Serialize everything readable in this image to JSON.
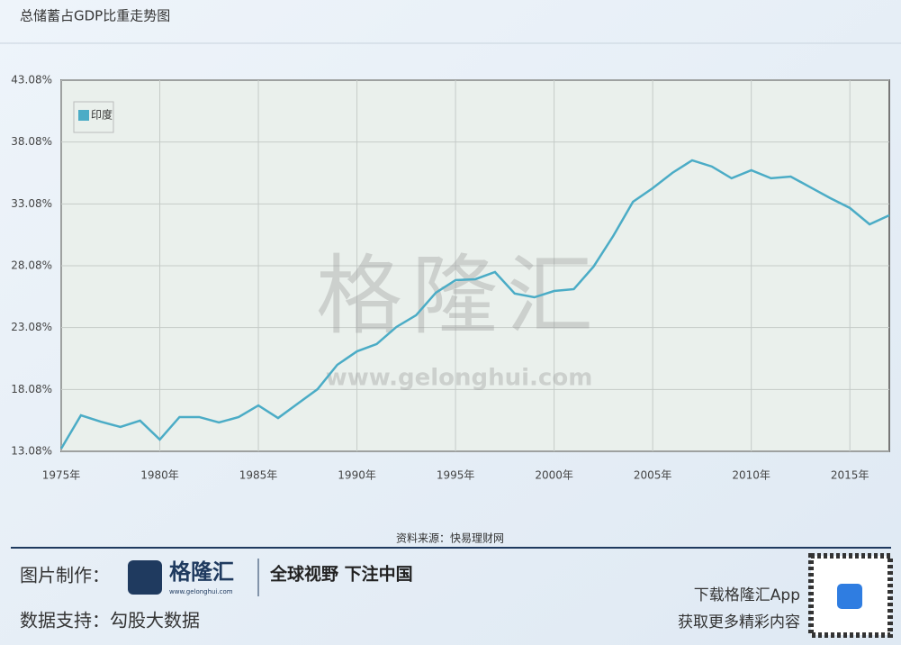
{
  "chart_data": {
    "type": "line",
    "title": "总储蓄占GDP比重走势图",
    "x": [
      1975,
      1976,
      1977,
      1978,
      1979,
      1980,
      1981,
      1982,
      1983,
      1984,
      1985,
      1986,
      1987,
      1988,
      1989,
      1990,
      1991,
      1992,
      1993,
      1994,
      1995,
      1996,
      1997,
      1998,
      1999,
      2000,
      2001,
      2002,
      2003,
      2004,
      2005,
      2006,
      2007,
      2008,
      2009,
      2010,
      2011,
      2012,
      2013,
      2014,
      2015,
      2016,
      2017
    ],
    "series": [
      {
        "name": "印度",
        "color": "#4bacc6",
        "values": [
          13.3,
          15.99,
          15.48,
          15.05,
          15.56,
          14.03,
          15.85,
          15.85,
          15.41,
          15.85,
          16.79,
          15.77,
          16.94,
          18.1,
          20.07,
          21.16,
          21.75,
          23.13,
          24.08,
          25.9,
          26.92,
          26.99,
          27.57,
          25.83,
          25.53,
          26.04,
          26.19,
          28.01,
          30.49,
          33.25,
          34.35,
          35.59,
          36.6,
          36.1,
          35.15,
          35.8,
          35.15,
          35.29,
          34.42,
          33.55,
          32.75,
          31.43,
          32.16
        ]
      }
    ],
    "xlim": [
      1975,
      2017
    ],
    "xticks": [
      {
        "value": 1975,
        "label": "1975年"
      },
      {
        "value": 1980,
        "label": "1980年"
      },
      {
        "value": 1985,
        "label": "1985年"
      },
      {
        "value": 1990,
        "label": "1990年"
      },
      {
        "value": 1995,
        "label": "1995年"
      },
      {
        "value": 2000,
        "label": "2000年"
      },
      {
        "value": 2005,
        "label": "2005年"
      },
      {
        "value": 2010,
        "label": "2010年"
      },
      {
        "value": 2015,
        "label": "2015年"
      }
    ],
    "ylim": [
      13.08,
      43.08
    ],
    "yticks": [
      {
        "value": 13.08,
        "label": "13.08%"
      },
      {
        "value": 18.08,
        "label": "18.08%"
      },
      {
        "value": 23.08,
        "label": "23.08%"
      },
      {
        "value": 28.08,
        "label": "28.08%"
      },
      {
        "value": 33.08,
        "label": "33.08%"
      },
      {
        "value": 38.08,
        "label": "38.08%"
      },
      {
        "value": 43.08,
        "label": "43.08%"
      }
    ],
    "grid": true,
    "legend": "upper-left",
    "source": "资料来源：快易理财网"
  },
  "watermark": {
    "brand": "格隆汇",
    "url": "www.gelonghui.com"
  },
  "footer": {
    "made_by_label": "图片制作：",
    "logo": "格隆汇",
    "logo_url": "www.gelonghui.com",
    "slogan": "全球视野 下注中国",
    "data_support": "数据支持：勾股大数据",
    "download": "下载格隆汇App",
    "more": "获取更多精彩内容"
  }
}
